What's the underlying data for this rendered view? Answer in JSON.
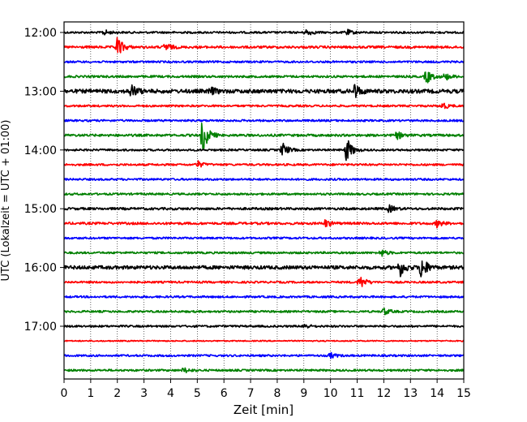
{
  "chart_data": {
    "type": "line",
    "title": "",
    "xlabel": "Zeit  [min]",
    "ylabel": "UTC (Lokalzeit = UTC + 01:00)",
    "xlim": [
      0,
      15
    ],
    "x_ticks": [
      "0",
      "1",
      "2",
      "3",
      "4",
      "5",
      "6",
      "7",
      "8",
      "9",
      "10",
      "11",
      "12",
      "13",
      "14",
      "15"
    ],
    "y_ticks": [
      "12:00",
      "13:00",
      "14:00",
      "15:00",
      "16:00",
      "17:00"
    ],
    "grid": "vertical dotted lines at each minute",
    "legend": "none",
    "trace_colors": [
      "#000000",
      "#ff0000",
      "#0000ff",
      "#008000"
    ],
    "traces": [
      {
        "start": "12:00",
        "amplitude": 1.0,
        "events": [
          {
            "t": 1.5,
            "a": 1.5
          },
          {
            "t": 9.1,
            "a": 1.8
          },
          {
            "t": 10.6,
            "a": 1.6
          }
        ]
      },
      {
        "start": "12:15",
        "amplitude": 1.2,
        "events": [
          {
            "t": 2.0,
            "a": 6.0
          },
          {
            "t": 3.8,
            "a": 2.5
          }
        ]
      },
      {
        "start": "12:30",
        "amplitude": 1.0,
        "events": []
      },
      {
        "start": "12:45",
        "amplitude": 1.1,
        "events": [
          {
            "t": 13.6,
            "a": 4.0
          },
          {
            "t": 14.3,
            "a": 2.0
          }
        ]
      },
      {
        "start": "13:00",
        "amplitude": 2.0,
        "events": [
          {
            "t": 2.5,
            "a": 4.0
          },
          {
            "t": 5.5,
            "a": 2.0
          },
          {
            "t": 10.9,
            "a": 4.0
          }
        ]
      },
      {
        "start": "13:15",
        "amplitude": 1.0,
        "events": [
          {
            "t": 14.2,
            "a": 2.0
          }
        ]
      },
      {
        "start": "13:30",
        "amplitude": 1.0,
        "events": []
      },
      {
        "start": "13:45",
        "amplitude": 1.2,
        "events": [
          {
            "t": 5.2,
            "a": 10.0
          },
          {
            "t": 12.5,
            "a": 2.0
          }
        ]
      },
      {
        "start": "14:00",
        "amplitude": 1.0,
        "events": [
          {
            "t": 8.2,
            "a": 4.0
          },
          {
            "t": 10.6,
            "a": 7.0
          }
        ]
      },
      {
        "start": "14:15",
        "amplitude": 1.0,
        "events": [
          {
            "t": 5.0,
            "a": 2.0
          }
        ]
      },
      {
        "start": "14:30",
        "amplitude": 1.0,
        "events": []
      },
      {
        "start": "14:45",
        "amplitude": 1.0,
        "events": []
      },
      {
        "start": "15:00",
        "amplitude": 1.2,
        "events": [
          {
            "t": 12.2,
            "a": 2.0
          }
        ]
      },
      {
        "start": "15:15",
        "amplitude": 1.2,
        "events": [
          {
            "t": 9.8,
            "a": 2.0
          },
          {
            "t": 14.0,
            "a": 2.0
          }
        ]
      },
      {
        "start": "15:30",
        "amplitude": 1.0,
        "events": []
      },
      {
        "start": "15:45",
        "amplitude": 1.0,
        "events": [
          {
            "t": 11.9,
            "a": 2.0
          }
        ]
      },
      {
        "start": "16:00",
        "amplitude": 1.8,
        "events": [
          {
            "t": 12.6,
            "a": 5.0
          },
          {
            "t": 13.4,
            "a": 7.0
          }
        ]
      },
      {
        "start": "16:15",
        "amplitude": 1.0,
        "events": [
          {
            "t": 11.1,
            "a": 4.0
          }
        ]
      },
      {
        "start": "16:30",
        "amplitude": 1.0,
        "events": []
      },
      {
        "start": "16:45",
        "amplitude": 1.0,
        "events": [
          {
            "t": 12.0,
            "a": 2.0
          }
        ]
      },
      {
        "start": "17:00",
        "amplitude": 1.0,
        "events": [
          {
            "t": 9.0,
            "a": 1.5
          }
        ]
      },
      {
        "start": "17:15",
        "amplitude": 0.6,
        "events": []
      },
      {
        "start": "17:30",
        "amplitude": 1.0,
        "events": [
          {
            "t": 10.0,
            "a": 1.5
          }
        ]
      },
      {
        "start": "17:45",
        "amplitude": 1.0,
        "events": [
          {
            "t": 4.5,
            "a": 1.5
          }
        ]
      }
    ]
  }
}
